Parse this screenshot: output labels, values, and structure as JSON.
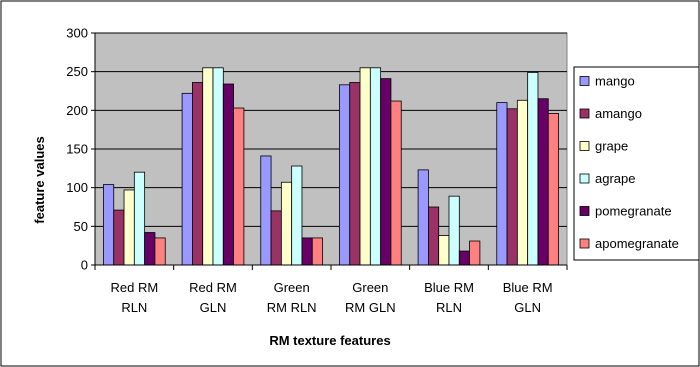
{
  "chart_data": {
    "type": "bar",
    "title": "",
    "xlabel": "RM texture features",
    "ylabel": "feature values",
    "ylim": [
      0,
      300
    ],
    "yticks": [
      0,
      50,
      100,
      150,
      200,
      250,
      300
    ],
    "grid": true,
    "legend_position": "right",
    "categories": [
      [
        "Red RM",
        "RLN"
      ],
      [
        "Red RM",
        "GLN"
      ],
      [
        "Green",
        "RM RLN"
      ],
      [
        "Green",
        "RM GLN"
      ],
      [
        "Blue RM",
        "RLN"
      ],
      [
        "Blue RM",
        "GLN"
      ]
    ],
    "series": [
      {
        "name": "mango",
        "color": "#9999ff",
        "values": [
          104,
          222,
          141,
          233,
          123,
          210
        ]
      },
      {
        "name": "amango",
        "color": "#993366",
        "values": [
          71,
          236,
          70,
          236,
          75,
          202
        ]
      },
      {
        "name": "grape",
        "color": "#ffffcc",
        "values": [
          97,
          255,
          107,
          255,
          38,
          213
        ]
      },
      {
        "name": "agrape",
        "color": "#ccffff",
        "values": [
          120,
          255,
          128,
          255,
          89,
          249
        ]
      },
      {
        "name": "pomegranate",
        "color": "#660066",
        "values": [
          42,
          234,
          35,
          241,
          18,
          215
        ]
      },
      {
        "name": "apomegranate",
        "color": "#ff8080",
        "values": [
          35,
          203,
          35,
          212,
          31,
          196
        ]
      }
    ],
    "plot_background": "#c0c0c0"
  }
}
